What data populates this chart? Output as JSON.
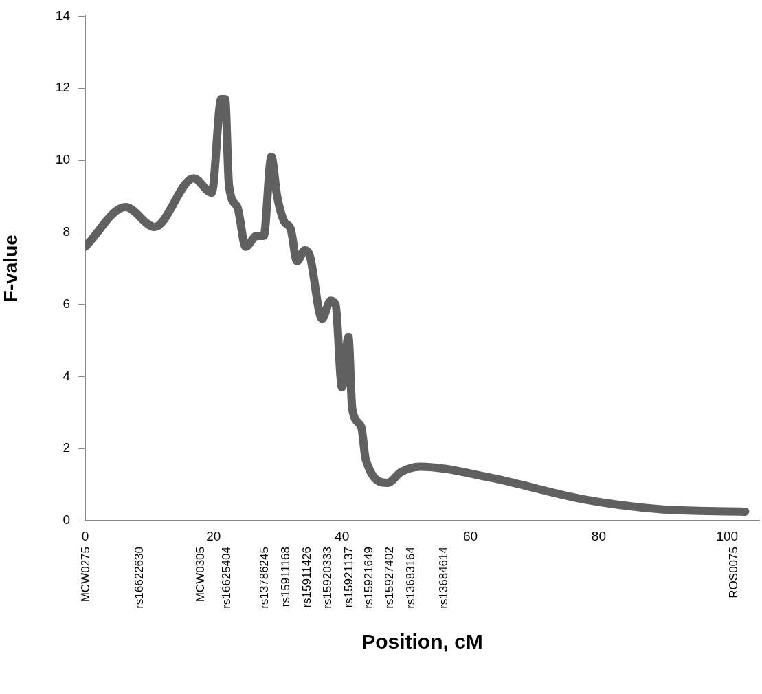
{
  "chart_data": {
    "type": "line",
    "xlabel": "Position, cM",
    "ylabel": "F-value",
    "series": [
      {
        "color": "#606060",
        "x": [
          0,
          6.3,
          10.8,
          16.9,
          19.7,
          21.2,
          21.8,
          22.4,
          23.7,
          25,
          26.7,
          27.8,
          29,
          29.9,
          31,
          32,
          33,
          34.2,
          34.9,
          36.9,
          38.2,
          39,
          40,
          41,
          41.6,
          43,
          43.7,
          47.1,
          49.2,
          52.1,
          63,
          77.4,
          89.4,
          102.8
        ],
        "values": [
          7.6,
          8.7,
          8.15,
          9.5,
          9.1,
          11.7,
          11.7,
          9.3,
          8.7,
          7.6,
          7.9,
          7.9,
          10.1,
          9,
          8.3,
          8.1,
          7.2,
          7.5,
          7.4,
          5.6,
          6.1,
          6,
          3.7,
          5.1,
          3.1,
          2.6,
          1.7,
          1.05,
          1.35,
          1.5,
          1.2,
          0.6,
          0.32,
          0.25
        ]
      }
    ],
    "xlim": [
      0,
      105
    ],
    "xticks": [
      0,
      20,
      40,
      60,
      80,
      100
    ],
    "ylim": [
      0,
      14
    ],
    "yticks": [
      0,
      2,
      4,
      6,
      8,
      10,
      12,
      14
    ],
    "grid": false,
    "legend": false,
    "marker": "none",
    "line_style": "solid",
    "annotations": [
      "MCW0275",
      "rs16622630",
      "MCW0305",
      "rs16625404",
      "rs13786245",
      "rs15911168",
      "rs15911426",
      "rs15920333",
      "rs15921137",
      "rs15921649",
      "rs15927402",
      "rs13683164",
      "rs13684614",
      "ROS0075"
    ]
  }
}
